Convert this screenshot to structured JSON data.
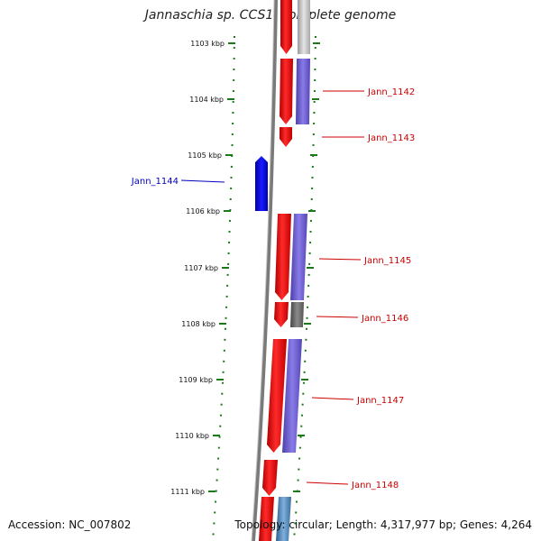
{
  "title": "Jannaschia sp. CCS1, complete genome",
  "accession": {
    "label": "Accession:",
    "value": "NC_007802"
  },
  "topology_text": "Topology: circular; Length: 4,317,977 bp; Genes: 4,264",
  "ruler_ticks": [
    "1103 kbp",
    "1104 kbp",
    "1105 kbp",
    "1106 kbp",
    "1107 kbp",
    "1108 kbp",
    "1109 kbp",
    "1110 kbp",
    "1111 kbp"
  ],
  "gene_labels": [
    {
      "name": "Jann_1142",
      "strand": "forward",
      "color": "#cc0000"
    },
    {
      "name": "Jann_1143",
      "strand": "forward",
      "color": "#cc0000"
    },
    {
      "name": "Jann_1144",
      "strand": "reverse",
      "color": "#0000bb"
    },
    {
      "name": "Jann_1145",
      "strand": "forward",
      "color": "#cc0000"
    },
    {
      "name": "Jann_1146",
      "strand": "forward",
      "color": "#cc0000"
    },
    {
      "name": "Jann_1147",
      "strand": "forward",
      "color": "#cc0000"
    },
    {
      "name": "Jann_1148",
      "strand": "forward",
      "color": "#cc0000"
    }
  ],
  "colors": {
    "forward_gene": "#ff0000",
    "reverse_gene": "#0000ff",
    "feature_purple": "#6a5acd",
    "feature_gray": "#777777",
    "feature_light": "#c8c8c8",
    "feature_blue": "#4a7fb5",
    "ruler": "#1a7a1a",
    "backbone": "#8a8a8a"
  }
}
